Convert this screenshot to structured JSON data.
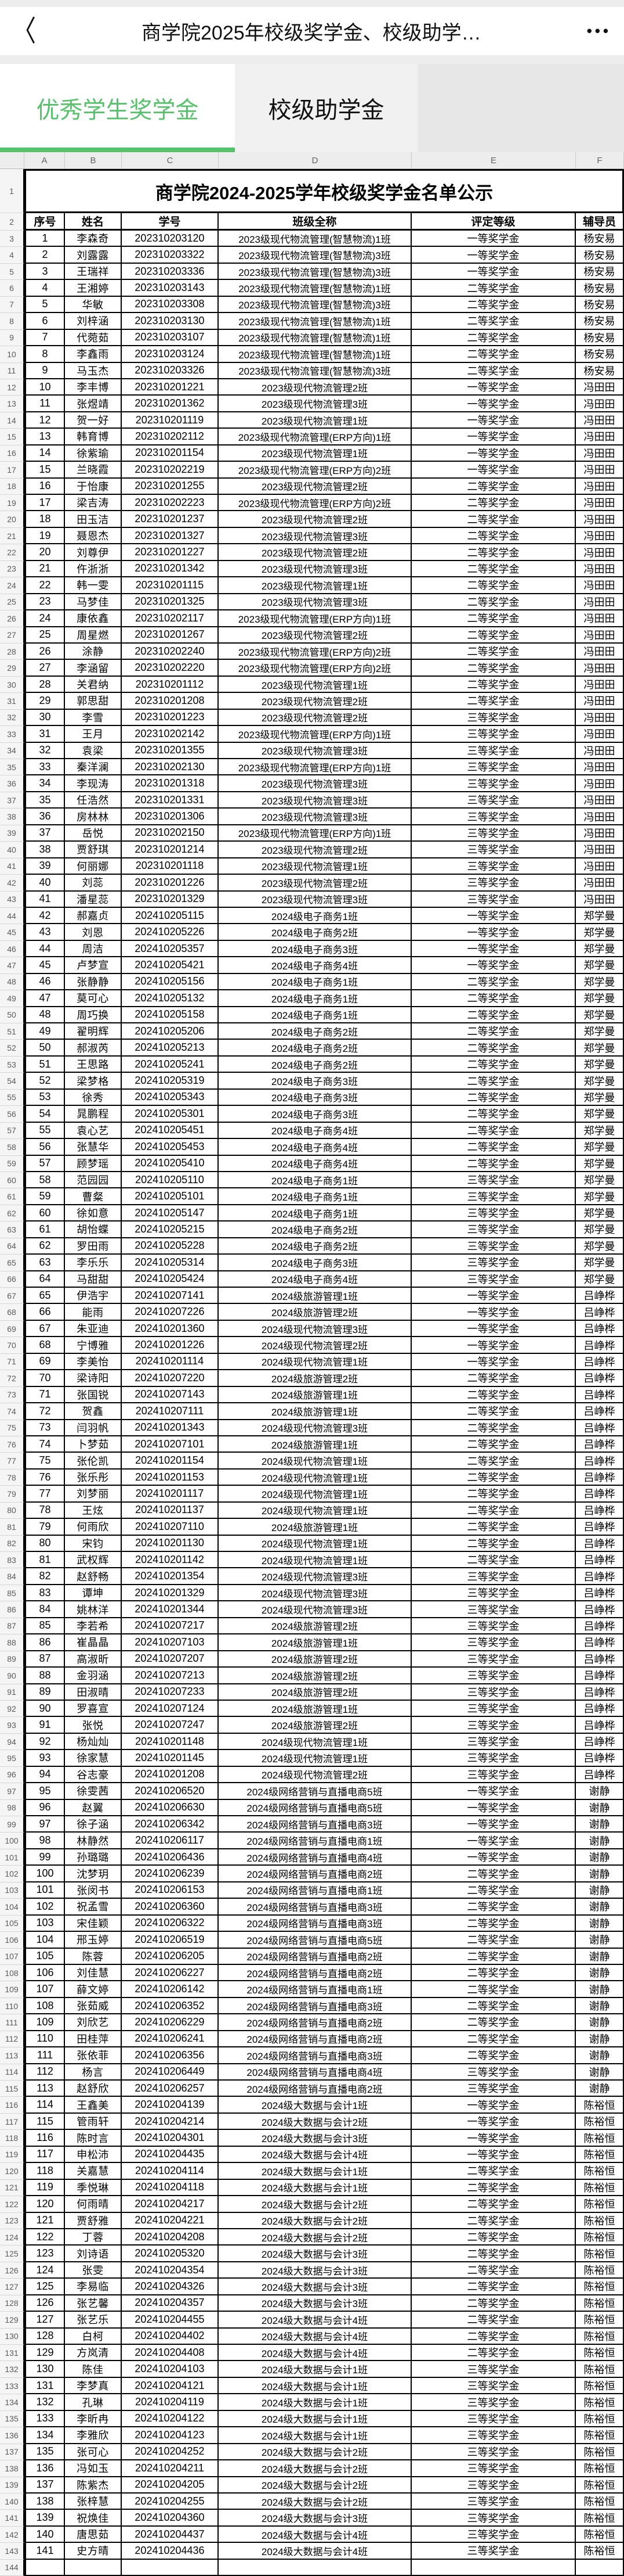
{
  "navbar": {
    "back_icon": "〈",
    "title": "商学院2025年校级奖学金、校级助学…",
    "more_icon": "•••"
  },
  "tabs": [
    {
      "label": "优秀学生奖学金",
      "active": true
    },
    {
      "label": "校级助学金",
      "active": false
    }
  ],
  "colors": {
    "accent_green": "#57c16b",
    "tab_inactive_bg": "#f1f1f1",
    "page_bg": "#ededed",
    "grid_border": "#000000"
  },
  "sheet": {
    "column_letters": [
      "A",
      "B",
      "C",
      "D",
      "E",
      "F"
    ],
    "title_row_number": "1",
    "header_row_number": "2",
    "title": "商学院2024-2025学年校级奖学金名单公示",
    "headers": [
      "序号",
      "姓名",
      "学号",
      "班级全称",
      "评定等级",
      "辅导员"
    ],
    "first_data_row_number": 3,
    "rows": [
      [
        "1",
        "李森奇",
        "202310203120",
        "2023级现代物流管理(智慧物流)1班",
        "一等奖学金",
        "杨安易"
      ],
      [
        "2",
        "刘露露",
        "202310203322",
        "2023级现代物流管理(智慧物流)3班",
        "一等奖学金",
        "杨安易"
      ],
      [
        "3",
        "王瑞祥",
        "202310203336",
        "2023级现代物流管理(智慧物流)3班",
        "一等奖学金",
        "杨安易"
      ],
      [
        "4",
        "王湘婷",
        "202310203143",
        "2023级现代物流管理(智慧物流)1班",
        "二等奖学金",
        "杨安易"
      ],
      [
        "5",
        "华敏",
        "202310203308",
        "2023级现代物流管理(智慧物流)3班",
        "二等奖学金",
        "杨安易"
      ],
      [
        "6",
        "刘梓涵",
        "202310203130",
        "2023级现代物流管理(智慧物流)1班",
        "二等奖学金",
        "杨安易"
      ],
      [
        "7",
        "代菀茹",
        "202310203107",
        "2023级现代物流管理(智慧物流)1班",
        "二等奖学金",
        "杨安易"
      ],
      [
        "8",
        "李鑫雨",
        "202310203124",
        "2023级现代物流管理(智慧物流)1班",
        "二等奖学金",
        "杨安易"
      ],
      [
        "9",
        "马玉杰",
        "202310203326",
        "2023级现代物流管理(智慧物流)3班",
        "二等奖学金",
        "杨安易"
      ],
      [
        "10",
        "李丰博",
        "202310201221",
        "2023级现代物流管理2班",
        "一等奖学金",
        "冯田田"
      ],
      [
        "11",
        "张煜靖",
        "202310201362",
        "2023级现代物流管理3班",
        "一等奖学金",
        "冯田田"
      ],
      [
        "12",
        "贺一好",
        "202310201119",
        "2023级现代物流管理1班",
        "一等奖学金",
        "冯田田"
      ],
      [
        "13",
        "韩育博",
        "202310202112",
        "2023级现代物流管理(ERP方向)1班",
        "一等奖学金",
        "冯田田"
      ],
      [
        "14",
        "徐紫瑜",
        "202310201154",
        "2023级现代物流管理1班",
        "一等奖学金",
        "冯田田"
      ],
      [
        "15",
        "兰晓霞",
        "202310202219",
        "2023级现代物流管理(ERP方向)2班",
        "一等奖学金",
        "冯田田"
      ],
      [
        "16",
        "于怡康",
        "202310201255",
        "2023级现代物流管理2班",
        "二等奖学金",
        "冯田田"
      ],
      [
        "17",
        "梁吉涛",
        "202310202223",
        "2023级现代物流管理(ERP方向)2班",
        "二等奖学金",
        "冯田田"
      ],
      [
        "18",
        "田玉洁",
        "202310201237",
        "2023级现代物流管理2班",
        "二等奖学金",
        "冯田田"
      ],
      [
        "19",
        "聂恩杰",
        "202310201327",
        "2023级现代物流管理3班",
        "二等奖学金",
        "冯田田"
      ],
      [
        "20",
        "刘尊伊",
        "202310201227",
        "2023级现代物流管理2班",
        "二等奖学金",
        "冯田田"
      ],
      [
        "21",
        "仵浙浙",
        "202310201342",
        "2023级现代物流管理3班",
        "二等奖学金",
        "冯田田"
      ],
      [
        "22",
        "韩一雯",
        "202310201115",
        "2023级现代物流管理1班",
        "二等奖学金",
        "冯田田"
      ],
      [
        "23",
        "马梦佳",
        "202310201325",
        "2023级现代物流管理3班",
        "二等奖学金",
        "冯田田"
      ],
      [
        "24",
        "康依鑫",
        "202310202117",
        "2023级现代物流管理(ERP方向)1班",
        "二等奖学金",
        "冯田田"
      ],
      [
        "25",
        "周星燃",
        "202310201267",
        "2023级现代物流管理2班",
        "二等奖学金",
        "冯田田"
      ],
      [
        "26",
        "涂静",
        "202310202240",
        "2023级现代物流管理(ERP方向)2班",
        "二等奖学金",
        "冯田田"
      ],
      [
        "27",
        "李涵留",
        "202310202220",
        "2023级现代物流管理(ERP方向)2班",
        "二等奖学金",
        "冯田田"
      ],
      [
        "28",
        "关君纳",
        "202310201112",
        "2023级现代物流管理1班",
        "二等奖学金",
        "冯田田"
      ],
      [
        "29",
        "郭思甜",
        "202310201208",
        "2023级现代物流管理2班",
        "二等奖学金",
        "冯田田"
      ],
      [
        "30",
        "李雪",
        "202310201223",
        "2023级现代物流管理2班",
        "三等奖学金",
        "冯田田"
      ],
      [
        "31",
        "王月",
        "202310202142",
        "2023级现代物流管理(ERP方向)1班",
        "三等奖学金",
        "冯田田"
      ],
      [
        "32",
        "袁梁",
        "202310201355",
        "2023级现代物流管理3班",
        "三等奖学金",
        "冯田田"
      ],
      [
        "33",
        "秦洋澜",
        "202310202130",
        "2023级现代物流管理(ERP方向)1班",
        "三等奖学金",
        "冯田田"
      ],
      [
        "34",
        "李现涛",
        "202310201318",
        "2023级现代物流管理3班",
        "三等奖学金",
        "冯田田"
      ],
      [
        "35",
        "任浩然",
        "202310201331",
        "2023级现代物流管理3班",
        "三等奖学金",
        "冯田田"
      ],
      [
        "36",
        "房林林",
        "202310201306",
        "2023级现代物流管理3班",
        "三等奖学金",
        "冯田田"
      ],
      [
        "37",
        "岳悦",
        "202310202150",
        "2023级现代物流管理(ERP方向)1班",
        "三等奖学金",
        "冯田田"
      ],
      [
        "38",
        "贾舒琪",
        "202310201214",
        "2023级现代物流管理2班",
        "三等奖学金",
        "冯田田"
      ],
      [
        "39",
        "何丽娜",
        "202310201118",
        "2023级现代物流管理1班",
        "三等奖学金",
        "冯田田"
      ],
      [
        "40",
        "刘蕊",
        "202310201226",
        "2023级现代物流管理2班",
        "三等奖学金",
        "冯田田"
      ],
      [
        "41",
        "潘星蕊",
        "202310201329",
        "2023级现代物流管理3班",
        "三等奖学金",
        "冯田田"
      ],
      [
        "42",
        "郝嘉贞",
        "202410205115",
        "2024级电子商务1班",
        "一等奖学金",
        "郑学曼"
      ],
      [
        "43",
        "刘恩",
        "202410205226",
        "2024级电子商务2班",
        "一等奖学金",
        "郑学曼"
      ],
      [
        "44",
        "周洁",
        "202410205357",
        "2024级电子商务3班",
        "一等奖学金",
        "郑学曼"
      ],
      [
        "45",
        "卢梦宣",
        "202410205421",
        "2024级电子商务4班",
        "一等奖学金",
        "郑学曼"
      ],
      [
        "46",
        "张静静",
        "202410205156",
        "2024级电子商务1班",
        "二等奖学金",
        "郑学曼"
      ],
      [
        "47",
        "莫可心",
        "202410205132",
        "2024级电子商务1班",
        "二等奖学金",
        "郑学曼"
      ],
      [
        "48",
        "周巧换",
        "202410205158",
        "2024级电子商务1班",
        "二等奖学金",
        "郑学曼"
      ],
      [
        "49",
        "翟明辉",
        "202410205206",
        "2024级电子商务2班",
        "二等奖学金",
        "郑学曼"
      ],
      [
        "50",
        "郝淑芮",
        "202410205213",
        "2024级电子商务2班",
        "二等奖学金",
        "郑学曼"
      ],
      [
        "51",
        "王思路",
        "202410205241",
        "2024级电子商务2班",
        "二等奖学金",
        "郑学曼"
      ],
      [
        "52",
        "梁梦格",
        "202410205319",
        "2024级电子商务3班",
        "二等奖学金",
        "郑学曼"
      ],
      [
        "53",
        "徐秀",
        "202410205343",
        "2024级电子商务3班",
        "二等奖学金",
        "郑学曼"
      ],
      [
        "54",
        "晁鹏程",
        "202410205301",
        "2024级电子商务3班",
        "二等奖学金",
        "郑学曼"
      ],
      [
        "55",
        "袁心艺",
        "202410205451",
        "2024级电子商务4班",
        "二等奖学金",
        "郑学曼"
      ],
      [
        "56",
        "张慧华",
        "202410205453",
        "2024级电子商务4班",
        "二等奖学金",
        "郑学曼"
      ],
      [
        "57",
        "顾梦瑶",
        "202410205410",
        "2024级电子商务4班",
        "二等奖学金",
        "郑学曼"
      ],
      [
        "58",
        "范园园",
        "202410205110",
        "2024级电子商务1班",
        "三等奖学金",
        "郑学曼"
      ],
      [
        "59",
        "曹粲",
        "202410205101",
        "2024级电子商务1班",
        "三等奖学金",
        "郑学曼"
      ],
      [
        "60",
        "徐如意",
        "202410205147",
        "2024级电子商务1班",
        "三等奖学金",
        "郑学曼"
      ],
      [
        "61",
        "胡怡蝶",
        "202410205215",
        "2024级电子商务2班",
        "三等奖学金",
        "郑学曼"
      ],
      [
        "62",
        "罗田雨",
        "202410205228",
        "2024级电子商务2班",
        "三等奖学金",
        "郑学曼"
      ],
      [
        "63",
        "李乐乐",
        "202410205314",
        "2024级电子商务3班",
        "三等奖学金",
        "郑学曼"
      ],
      [
        "64",
        "马甜甜",
        "202410205424",
        "2024级电子商务4班",
        "三等奖学金",
        "郑学曼"
      ],
      [
        "65",
        "伊浩宇",
        "202410207141",
        "2024级旅游管理1班",
        "一等奖学金",
        "吕峥桦"
      ],
      [
        "66",
        "能雨",
        "202410207226",
        "2024级旅游管理2班",
        "一等奖学金",
        "吕峥桦"
      ],
      [
        "67",
        "朱亚迪",
        "202410201360",
        "2024级现代物流管理3班",
        "一等奖学金",
        "吕峥桦"
      ],
      [
        "68",
        "宁博雅",
        "202410201226",
        "2024级现代物流管理2班",
        "一等奖学金",
        "吕峥桦"
      ],
      [
        "69",
        "李美怡",
        "202410201114",
        "2024级现代物流管理1班",
        "一等奖学金",
        "吕峥桦"
      ],
      [
        "70",
        "梁诗阳",
        "202410207220",
        "2024级旅游管理2班",
        "二等奖学金",
        "吕峥桦"
      ],
      [
        "71",
        "张国锐",
        "202410207143",
        "2024级旅游管理1班",
        "二等奖学金",
        "吕峥桦"
      ],
      [
        "72",
        "贺鑫",
        "202410207111",
        "2024级旅游管理1班",
        "二等奖学金",
        "吕峥桦"
      ],
      [
        "73",
        "闫羽帆",
        "202410201343",
        "2024级现代物流管理3班",
        "二等奖学金",
        "吕峥桦"
      ],
      [
        "74",
        "卜梦茹",
        "202410207101",
        "2024级旅游管理1班",
        "二等奖学金",
        "吕峥桦"
      ],
      [
        "75",
        "张伦凯",
        "202410201154",
        "2024级现代物流管理1班",
        "二等奖学金",
        "吕峥桦"
      ],
      [
        "76",
        "张乐彤",
        "202410201153",
        "2024级现代物流管理1班",
        "二等奖学金",
        "吕峥桦"
      ],
      [
        "77",
        "刘梦丽",
        "202410201117",
        "2024级现代物流管理1班",
        "二等奖学金",
        "吕峥桦"
      ],
      [
        "78",
        "王炫",
        "202410201137",
        "2024级现代物流管理1班",
        "二等奖学金",
        "吕峥桦"
      ],
      [
        "79",
        "何雨欣",
        "202410207110",
        "2024级旅游管理1班",
        "二等奖学金",
        "吕峥桦"
      ],
      [
        "80",
        "宋钧",
        "202410201130",
        "2024级现代物流管理1班",
        "二等奖学金",
        "吕峥桦"
      ],
      [
        "81",
        "武权辉",
        "202410201142",
        "2024级现代物流管理1班",
        "二等奖学金",
        "吕峥桦"
      ],
      [
        "82",
        "赵舒畅",
        "202410201354",
        "2024级现代物流管理3班",
        "三等奖学金",
        "吕峥桦"
      ],
      [
        "83",
        "谭坤",
        "202410201329",
        "2024级现代物流管理3班",
        "三等奖学金",
        "吕峥桦"
      ],
      [
        "84",
        "姚林洋",
        "202410201344",
        "2024级现代物流管理3班",
        "三等奖学金",
        "吕峥桦"
      ],
      [
        "85",
        "李若希",
        "202410207217",
        "2024级旅游管理2班",
        "三等奖学金",
        "吕峥桦"
      ],
      [
        "86",
        "崔晶晶",
        "202410207103",
        "2024级旅游管理1班",
        "三等奖学金",
        "吕峥桦"
      ],
      [
        "87",
        "高淑昕",
        "202410207207",
        "2024级旅游管理2班",
        "三等奖学金",
        "吕峥桦"
      ],
      [
        "88",
        "金羽涵",
        "202410207213",
        "2024级旅游管理2班",
        "三等奖学金",
        "吕峥桦"
      ],
      [
        "89",
        "田淑晴",
        "202410207233",
        "2024级旅游管理2班",
        "三等奖学金",
        "吕峥桦"
      ],
      [
        "90",
        "罗喜宣",
        "202410207124",
        "2024级旅游管理1班",
        "三等奖学金",
        "吕峥桦"
      ],
      [
        "91",
        "张悦",
        "202410207247",
        "2024级旅游管理2班",
        "三等奖学金",
        "吕峥桦"
      ],
      [
        "92",
        "杨灿灿",
        "202410201148",
        "2024级现代物流管理1班",
        "三等奖学金",
        "吕峥桦"
      ],
      [
        "93",
        "徐家慧",
        "202410201145",
        "2024级现代物流管理1班",
        "三等奖学金",
        "吕峥桦"
      ],
      [
        "94",
        "谷志豪",
        "202410201208",
        "2024级现代物流管理2班",
        "三等奖学金",
        "吕峥桦"
      ],
      [
        "95",
        "徐雯茜",
        "202410206520",
        "2024级网络营销与直播电商5班",
        "一等奖学金",
        "谢静"
      ],
      [
        "96",
        "赵翼",
        "202410206630",
        "2024级网络营销与直播电商5班",
        "一等奖学金",
        "谢静"
      ],
      [
        "97",
        "徐子涵",
        "202410206342",
        "2024级网络营销与直播电商3班",
        "一等奖学金",
        "谢静"
      ],
      [
        "98",
        "林静然",
        "202410206117",
        "2024级网络营销与直播电商1班",
        "一等奖学金",
        "谢静"
      ],
      [
        "99",
        "孙璐璐",
        "202410206436",
        "2024级网络营销与直播电商4班",
        "一等奖学金",
        "谢静"
      ],
      [
        "100",
        "沈梦玥",
        "202410206239",
        "2024级网络营销与直播电商2班",
        "二等奖学金",
        "谢静"
      ],
      [
        "101",
        "张闵书",
        "202410206153",
        "2024级网络营销与直播电商1班",
        "二等奖学金",
        "谢静"
      ],
      [
        "102",
        "祝孟雪",
        "202410206360",
        "2024级网络营销与直播电商3班",
        "二等奖学金",
        "谢静"
      ],
      [
        "103",
        "宋佳颖",
        "202410206322",
        "2024级网络营销与直播电商3班",
        "二等奖学金",
        "谢静"
      ],
      [
        "104",
        "邢玉婷",
        "202410206519",
        "2024级网络营销与直播电商5班",
        "二等奖学金",
        "谢静"
      ],
      [
        "105",
        "陈蓉",
        "202410206205",
        "2024级网络营销与直播电商2班",
        "二等奖学金",
        "谢静"
      ],
      [
        "106",
        "刘佳慧",
        "202410206227",
        "2024级网络营销与直播电商2班",
        "二等奖学金",
        "谢静"
      ],
      [
        "107",
        "薛文婷",
        "202410206142",
        "2024级网络营销与直播电商1班",
        "二等奖学金",
        "谢静"
      ],
      [
        "108",
        "张茹威",
        "202410206352",
        "2024级网络营销与直播电商3班",
        "二等奖学金",
        "谢静"
      ],
      [
        "109",
        "刘欣艺",
        "202410206229",
        "2024级网络营销与直播电商2班",
        "二等奖学金",
        "谢静"
      ],
      [
        "110",
        "田桂萍",
        "202410206241",
        "2024级网络营销与直播电商2班",
        "二等奖学金",
        "谢静"
      ],
      [
        "111",
        "张依菲",
        "202410206356",
        "2024级网络营销与直播电商3班",
        "二等奖学金",
        "谢静"
      ],
      [
        "112",
        "杨言",
        "202410206449",
        "2024级网络营销与直播电商4班",
        "三等奖学金",
        "谢静"
      ],
      [
        "113",
        "赵舒欣",
        "202410206257",
        "2024级网络营销与直播电商2班",
        "三等奖学金",
        "谢静"
      ],
      [
        "114",
        "王鑫美",
        "202410204139",
        "2024级大数据与会计1班",
        "一等奖学金",
        "陈裕恒"
      ],
      [
        "115",
        "管雨轩",
        "202410204214",
        "2024级大数据与会计2班",
        "一等奖学金",
        "陈裕恒"
      ],
      [
        "116",
        "陈时言",
        "202410204301",
        "2024级大数据与会计3班",
        "一等奖学金",
        "陈裕恒"
      ],
      [
        "117",
        "申松沛",
        "202410204435",
        "2024级大数据与会计4班",
        "一等奖学金",
        "陈裕恒"
      ],
      [
        "118",
        "关嘉慧",
        "202410204114",
        "2024级大数据与会计1班",
        "二等奖学金",
        "陈裕恒"
      ],
      [
        "119",
        "季悦琳",
        "202410204118",
        "2024级大数据与会计1班",
        "二等奖学金",
        "陈裕恒"
      ],
      [
        "120",
        "何雨晴",
        "202410204217",
        "2024级大数据与会计2班",
        "二等奖学金",
        "陈裕恒"
      ],
      [
        "121",
        "贾舒雅",
        "202410204221",
        "2024级大数据与会计2班",
        "二等奖学金",
        "陈裕恒"
      ],
      [
        "122",
        "丁蓉",
        "202410204208",
        "2024级大数据与会计2班",
        "二等奖学金",
        "陈裕恒"
      ],
      [
        "123",
        "刘诗语",
        "202410205320",
        "2024级大数据与会计3班",
        "二等奖学金",
        "陈裕恒"
      ],
      [
        "124",
        "张雯",
        "202410204354",
        "2024级大数据与会计3班",
        "二等奖学金",
        "陈裕恒"
      ],
      [
        "125",
        "李易临",
        "202410204326",
        "2024级大数据与会计3班",
        "二等奖学金",
        "陈裕恒"
      ],
      [
        "126",
        "张艺馨",
        "202410204357",
        "2024级大数据与会计3班",
        "二等奖学金",
        "陈裕恒"
      ],
      [
        "127",
        "张艺乐",
        "202410204455",
        "2024级大数据与会计4班",
        "二等奖学金",
        "陈裕恒"
      ],
      [
        "128",
        "白柯",
        "202410204402",
        "2024级大数据与会计4班",
        "二等奖学金",
        "陈裕恒"
      ],
      [
        "129",
        "方岚清",
        "202410204408",
        "2024级大数据与会计4班",
        "二等奖学金",
        "陈裕恒"
      ],
      [
        "130",
        "陈佳",
        "202410204103",
        "2024级大数据与会计1班",
        "三等奖学金",
        "陈裕恒"
      ],
      [
        "131",
        "李梦真",
        "202410204121",
        "2024级大数据与会计1班",
        "三等奖学金",
        "陈裕恒"
      ],
      [
        "132",
        "孔琳",
        "202410204119",
        "2024级大数据与会计1班",
        "三等奖学金",
        "陈裕恒"
      ],
      [
        "133",
        "李昕冉",
        "202410204122",
        "2024级大数据与会计1班",
        "三等奖学金",
        "陈裕恒"
      ],
      [
        "134",
        "李雅欣",
        "202410204123",
        "2024级大数据与会计1班",
        "三等奖学金",
        "陈裕恒"
      ],
      [
        "135",
        "张可心",
        "202410204252",
        "2024级大数据与会计2班",
        "三等奖学金",
        "陈裕恒"
      ],
      [
        "136",
        "冯如玉",
        "202410204211",
        "2024级大数据与会计2班",
        "三等奖学金",
        "陈裕恒"
      ],
      [
        "137",
        "陈紫杰",
        "202410204205",
        "2024级大数据与会计2班",
        "三等奖学金",
        "陈裕恒"
      ],
      [
        "138",
        "张梓慧",
        "202410204255",
        "2024级大数据与会计2班",
        "三等奖学金",
        "陈裕恒"
      ],
      [
        "139",
        "祝焕佳",
        "202410204360",
        "2024级大数据与会计3班",
        "三等奖学金",
        "陈裕恒"
      ],
      [
        "140",
        "唐思茹",
        "202410204437",
        "2024级大数据与会计4班",
        "三等奖学金",
        "陈裕恒"
      ],
      [
        "141",
        "史方晴",
        "202410204436",
        "2024级大数据与会计4班",
        "三等奖学金",
        "陈裕恒"
      ],
      [
        "",
        "",
        "",
        "",
        "",
        ""
      ]
    ]
  }
}
